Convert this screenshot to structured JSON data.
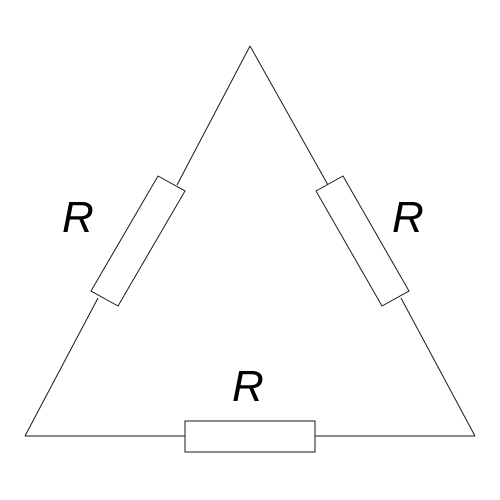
{
  "diagram": {
    "type": "delta resistor network",
    "colors": {
      "line": "#1a1a1a",
      "background": "#ffffff",
      "text": "#000000"
    },
    "resistors": {
      "left": {
        "label": "R"
      },
      "right": {
        "label": "R"
      },
      "bottom": {
        "label": "R"
      }
    }
  }
}
